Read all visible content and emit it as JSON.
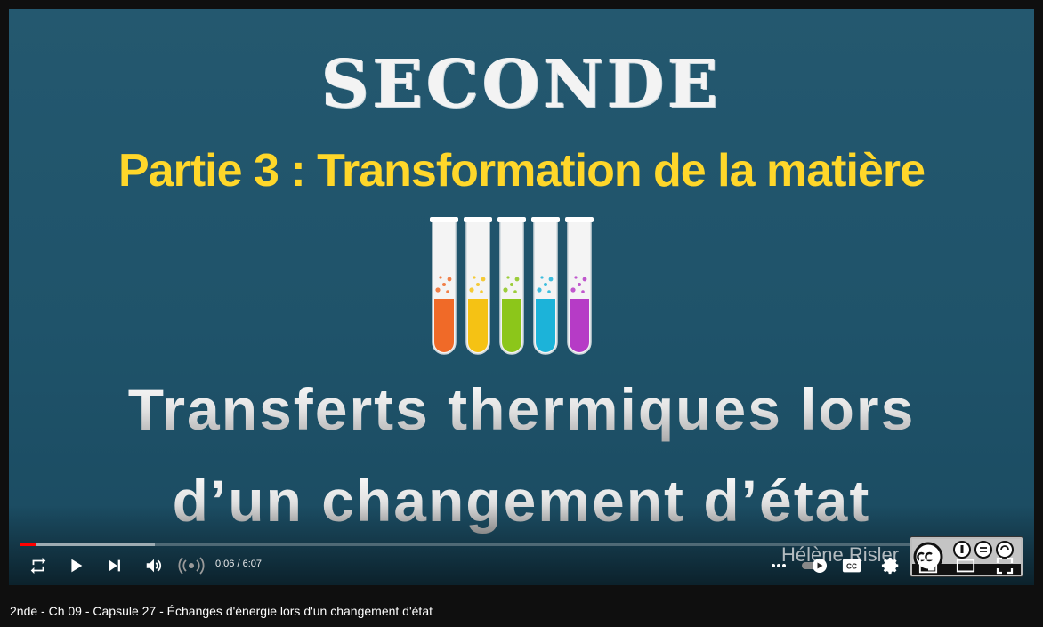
{
  "slide": {
    "level": "SECONDE",
    "part": "Partie 3 : Transformation de la matière",
    "title_line1": "Transferts thermiques lors",
    "title_line2": "d’un changement d’état",
    "tube_colors": [
      "#f06a28",
      "#f5c214",
      "#8cc61a",
      "#1cb3d9",
      "#b63bc6"
    ]
  },
  "player": {
    "time": "0:06 / 6:07",
    "progress_played": 0.016,
    "progress_loaded": 0.135,
    "watermark_name": "Hélène Risler",
    "accent": "#ff0000"
  },
  "controls": {
    "icons": [
      "loop-icon",
      "play-icon",
      "next-icon",
      "volume-icon",
      "live-icon",
      "more-icon",
      "autoplay-toggle",
      "subtitles-icon",
      "settings-icon",
      "miniplayer-icon",
      "theater-icon",
      "fullscreen-icon"
    ]
  },
  "video_title": "2nde - Ch 09 - Capsule 27 - Échanges d'énergie lors d'un changement d'état"
}
